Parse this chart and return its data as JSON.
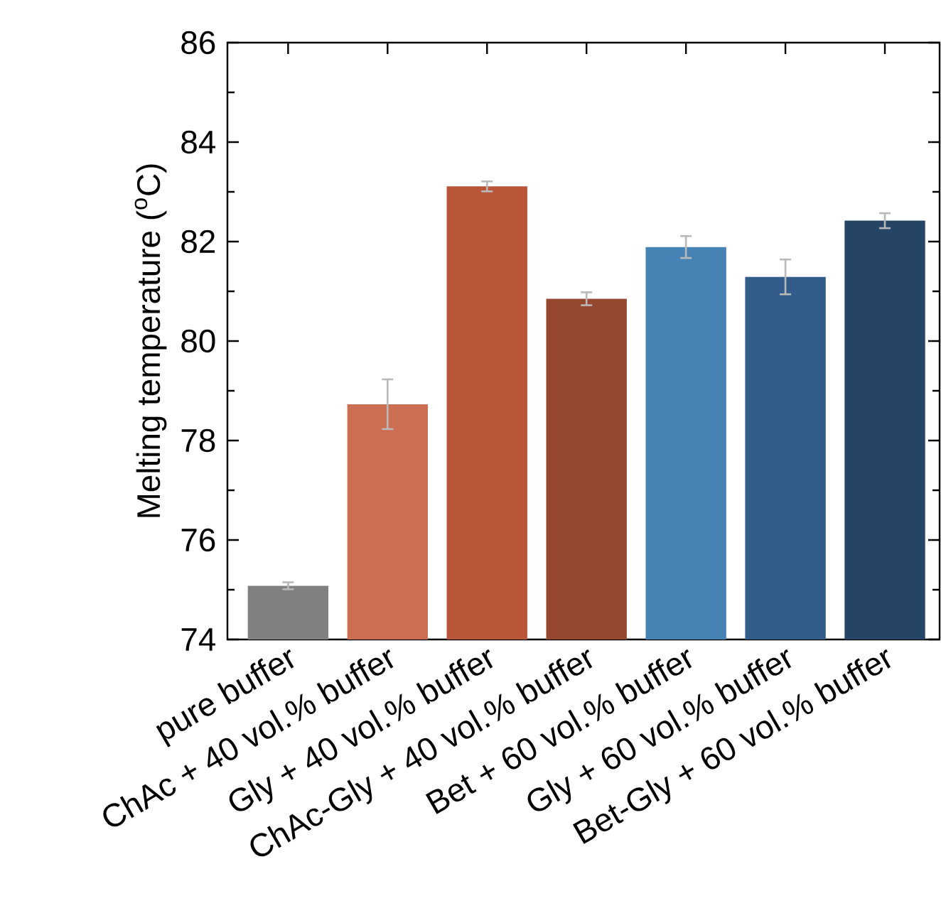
{
  "chart_data": {
    "type": "bar",
    "ylabel": "Melting temperature ($^{o}$C)",
    "categories": [
      "pure buffer",
      "ChAc + 40 vol.% buffer",
      "Gly + 40 vol.% buffer",
      "ChAc-Gly + 40 vol.% buffer",
      "Bet + 60 vol.% buffer",
      "Gly + 60 vol.% buffer",
      "Bet-Gly + 60 vol.% buffer"
    ],
    "values": [
      75.08,
      78.73,
      83.11,
      80.85,
      81.89,
      81.29,
      82.42
    ],
    "errors": [
      0.07,
      0.5,
      0.1,
      0.13,
      0.22,
      0.35,
      0.15
    ],
    "colors": [
      "#808080",
      "#cc6e51",
      "#b9563a",
      "#95472f",
      "#4682b4",
      "#325c8a",
      "#264466"
    ],
    "ylim": [
      74,
      86
    ],
    "yticks": [
      74,
      76,
      78,
      80,
      82,
      84,
      86
    ],
    "grid": false
  }
}
